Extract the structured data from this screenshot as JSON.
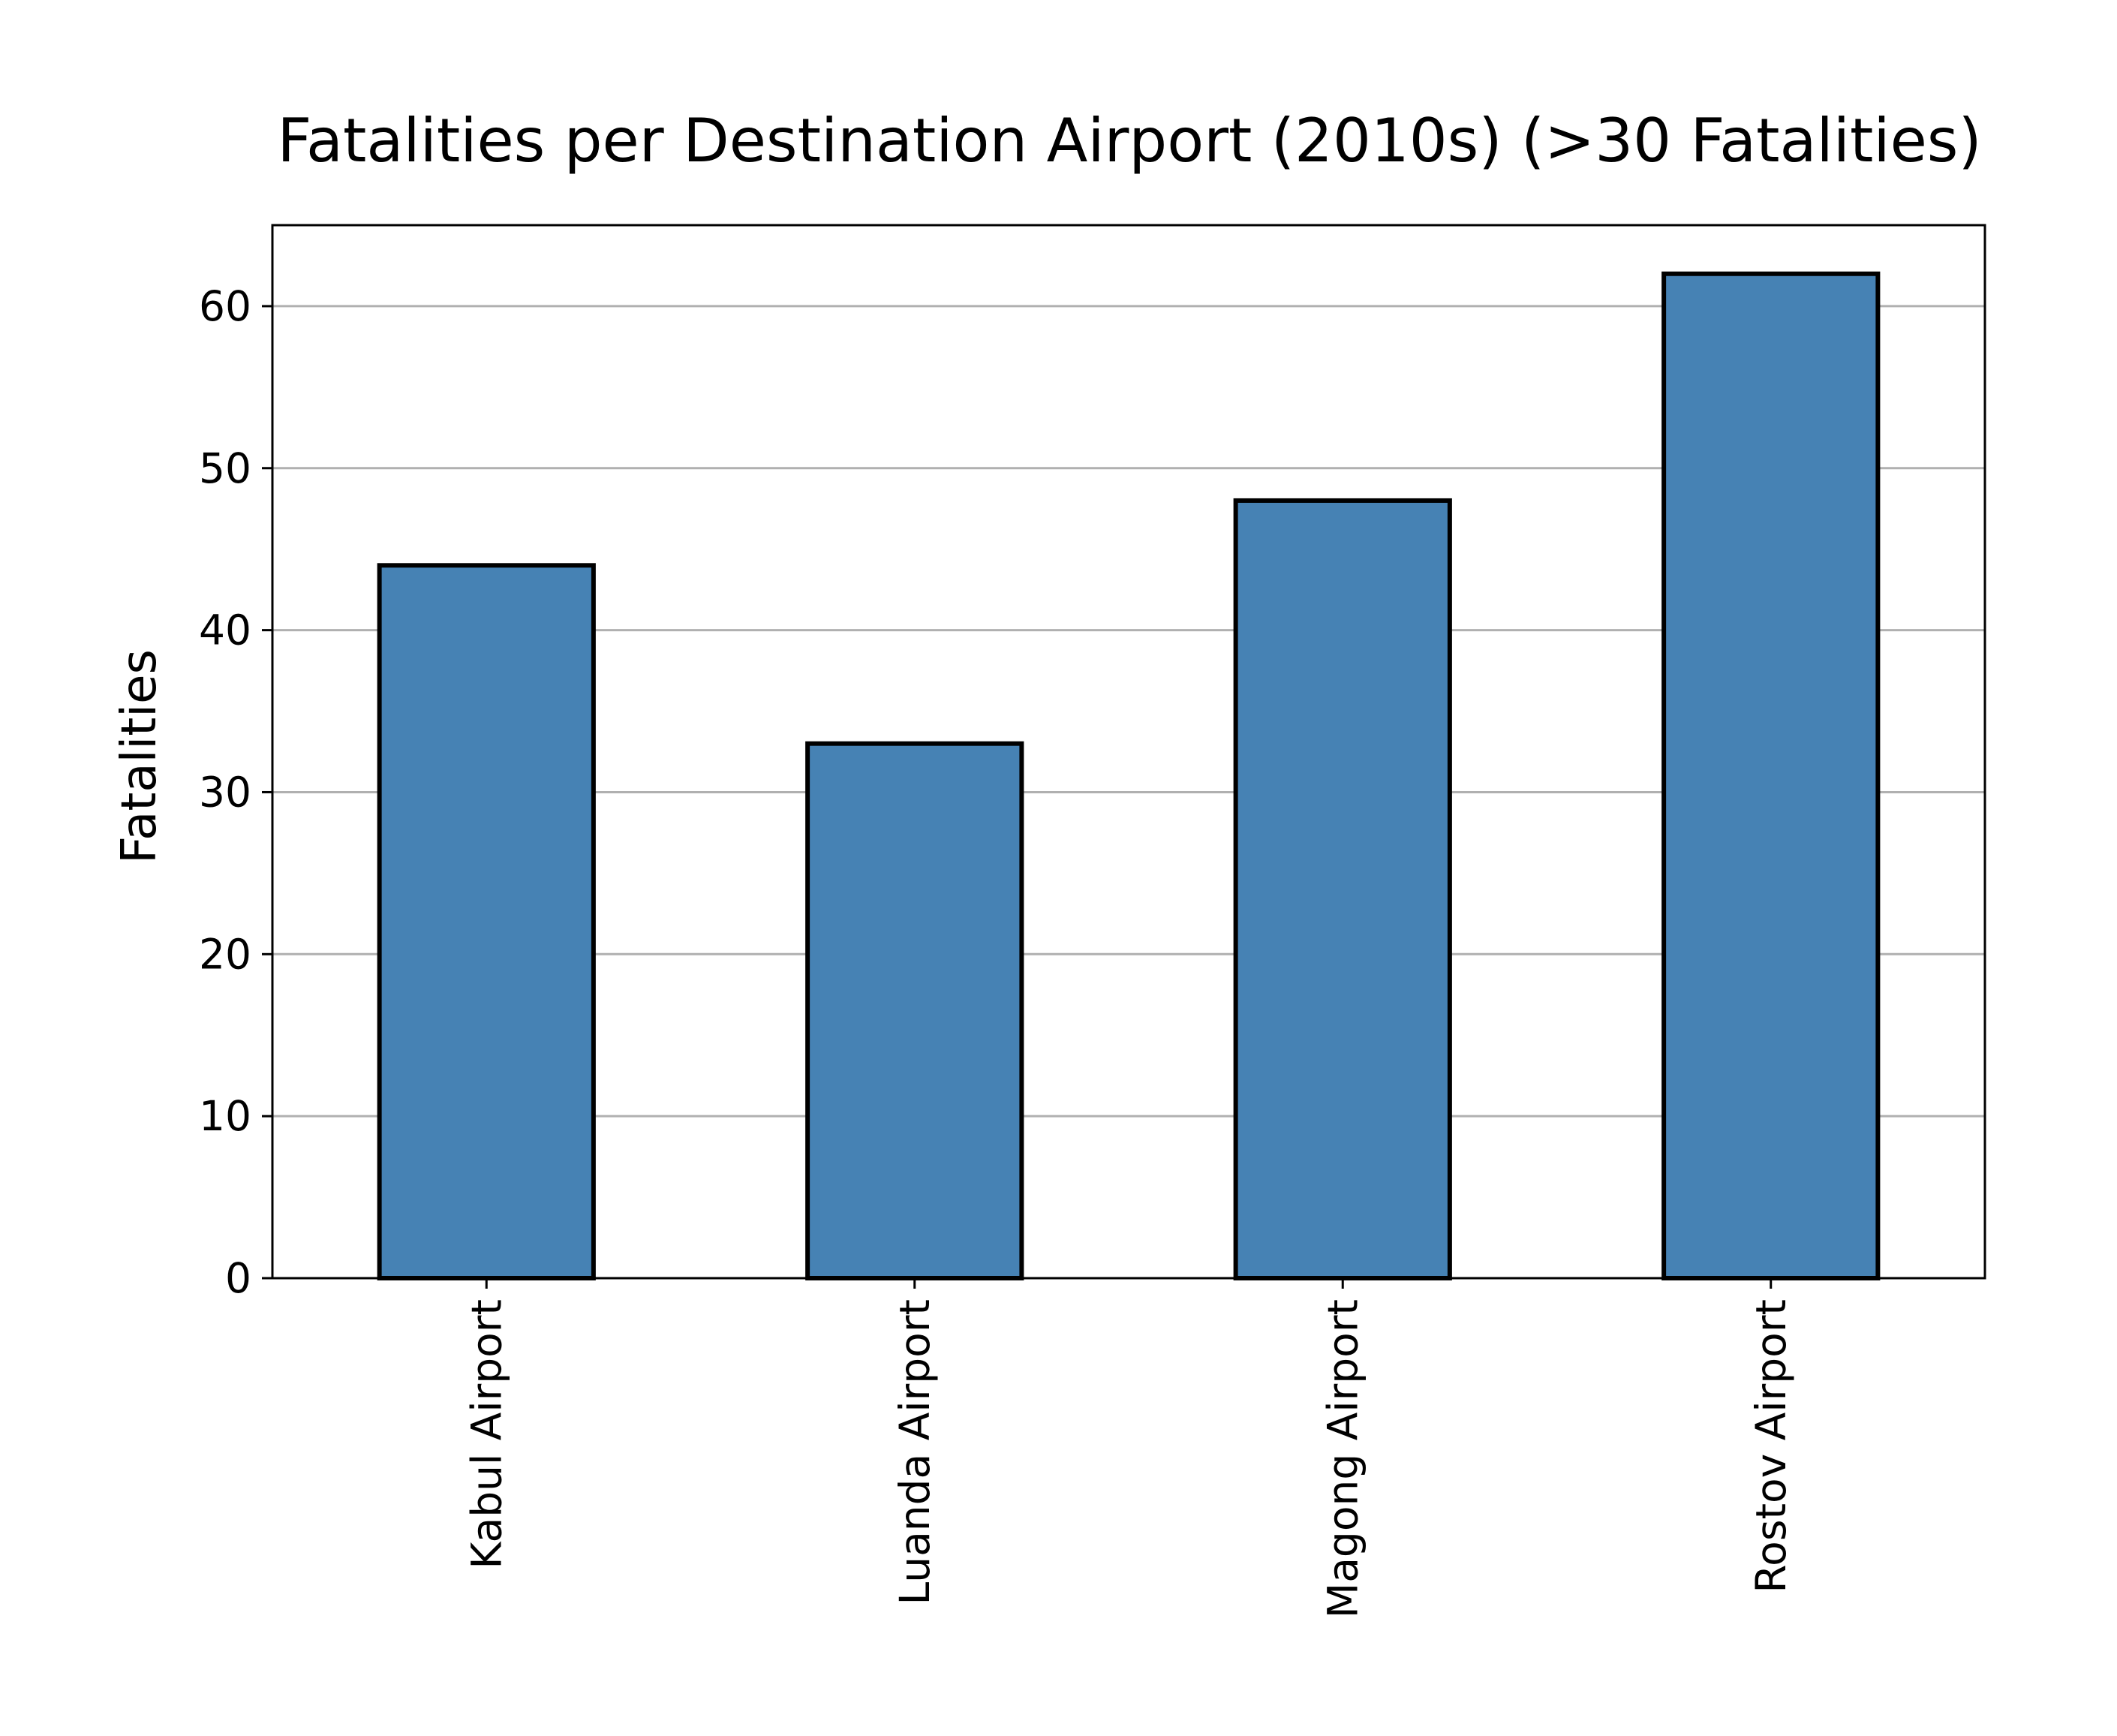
{
  "chart_data": {
    "type": "bar",
    "title": "Fatalities per Destination Airport (2010s) (>30 Fatalities)",
    "xlabel": "",
    "ylabel": "Fatalities",
    "categories": [
      "Kabul Airport",
      "Luanda Airport",
      "Magong Airport",
      "Rostov Airport"
    ],
    "values": [
      44,
      33,
      48,
      62
    ],
    "ylim": [
      0,
      65
    ],
    "yticks": [
      0,
      10,
      20,
      30,
      40,
      50,
      60
    ],
    "grid": "horizontal",
    "legend": "none",
    "bar_color": "#4682b4",
    "bar_edge_color": "#000000"
  }
}
